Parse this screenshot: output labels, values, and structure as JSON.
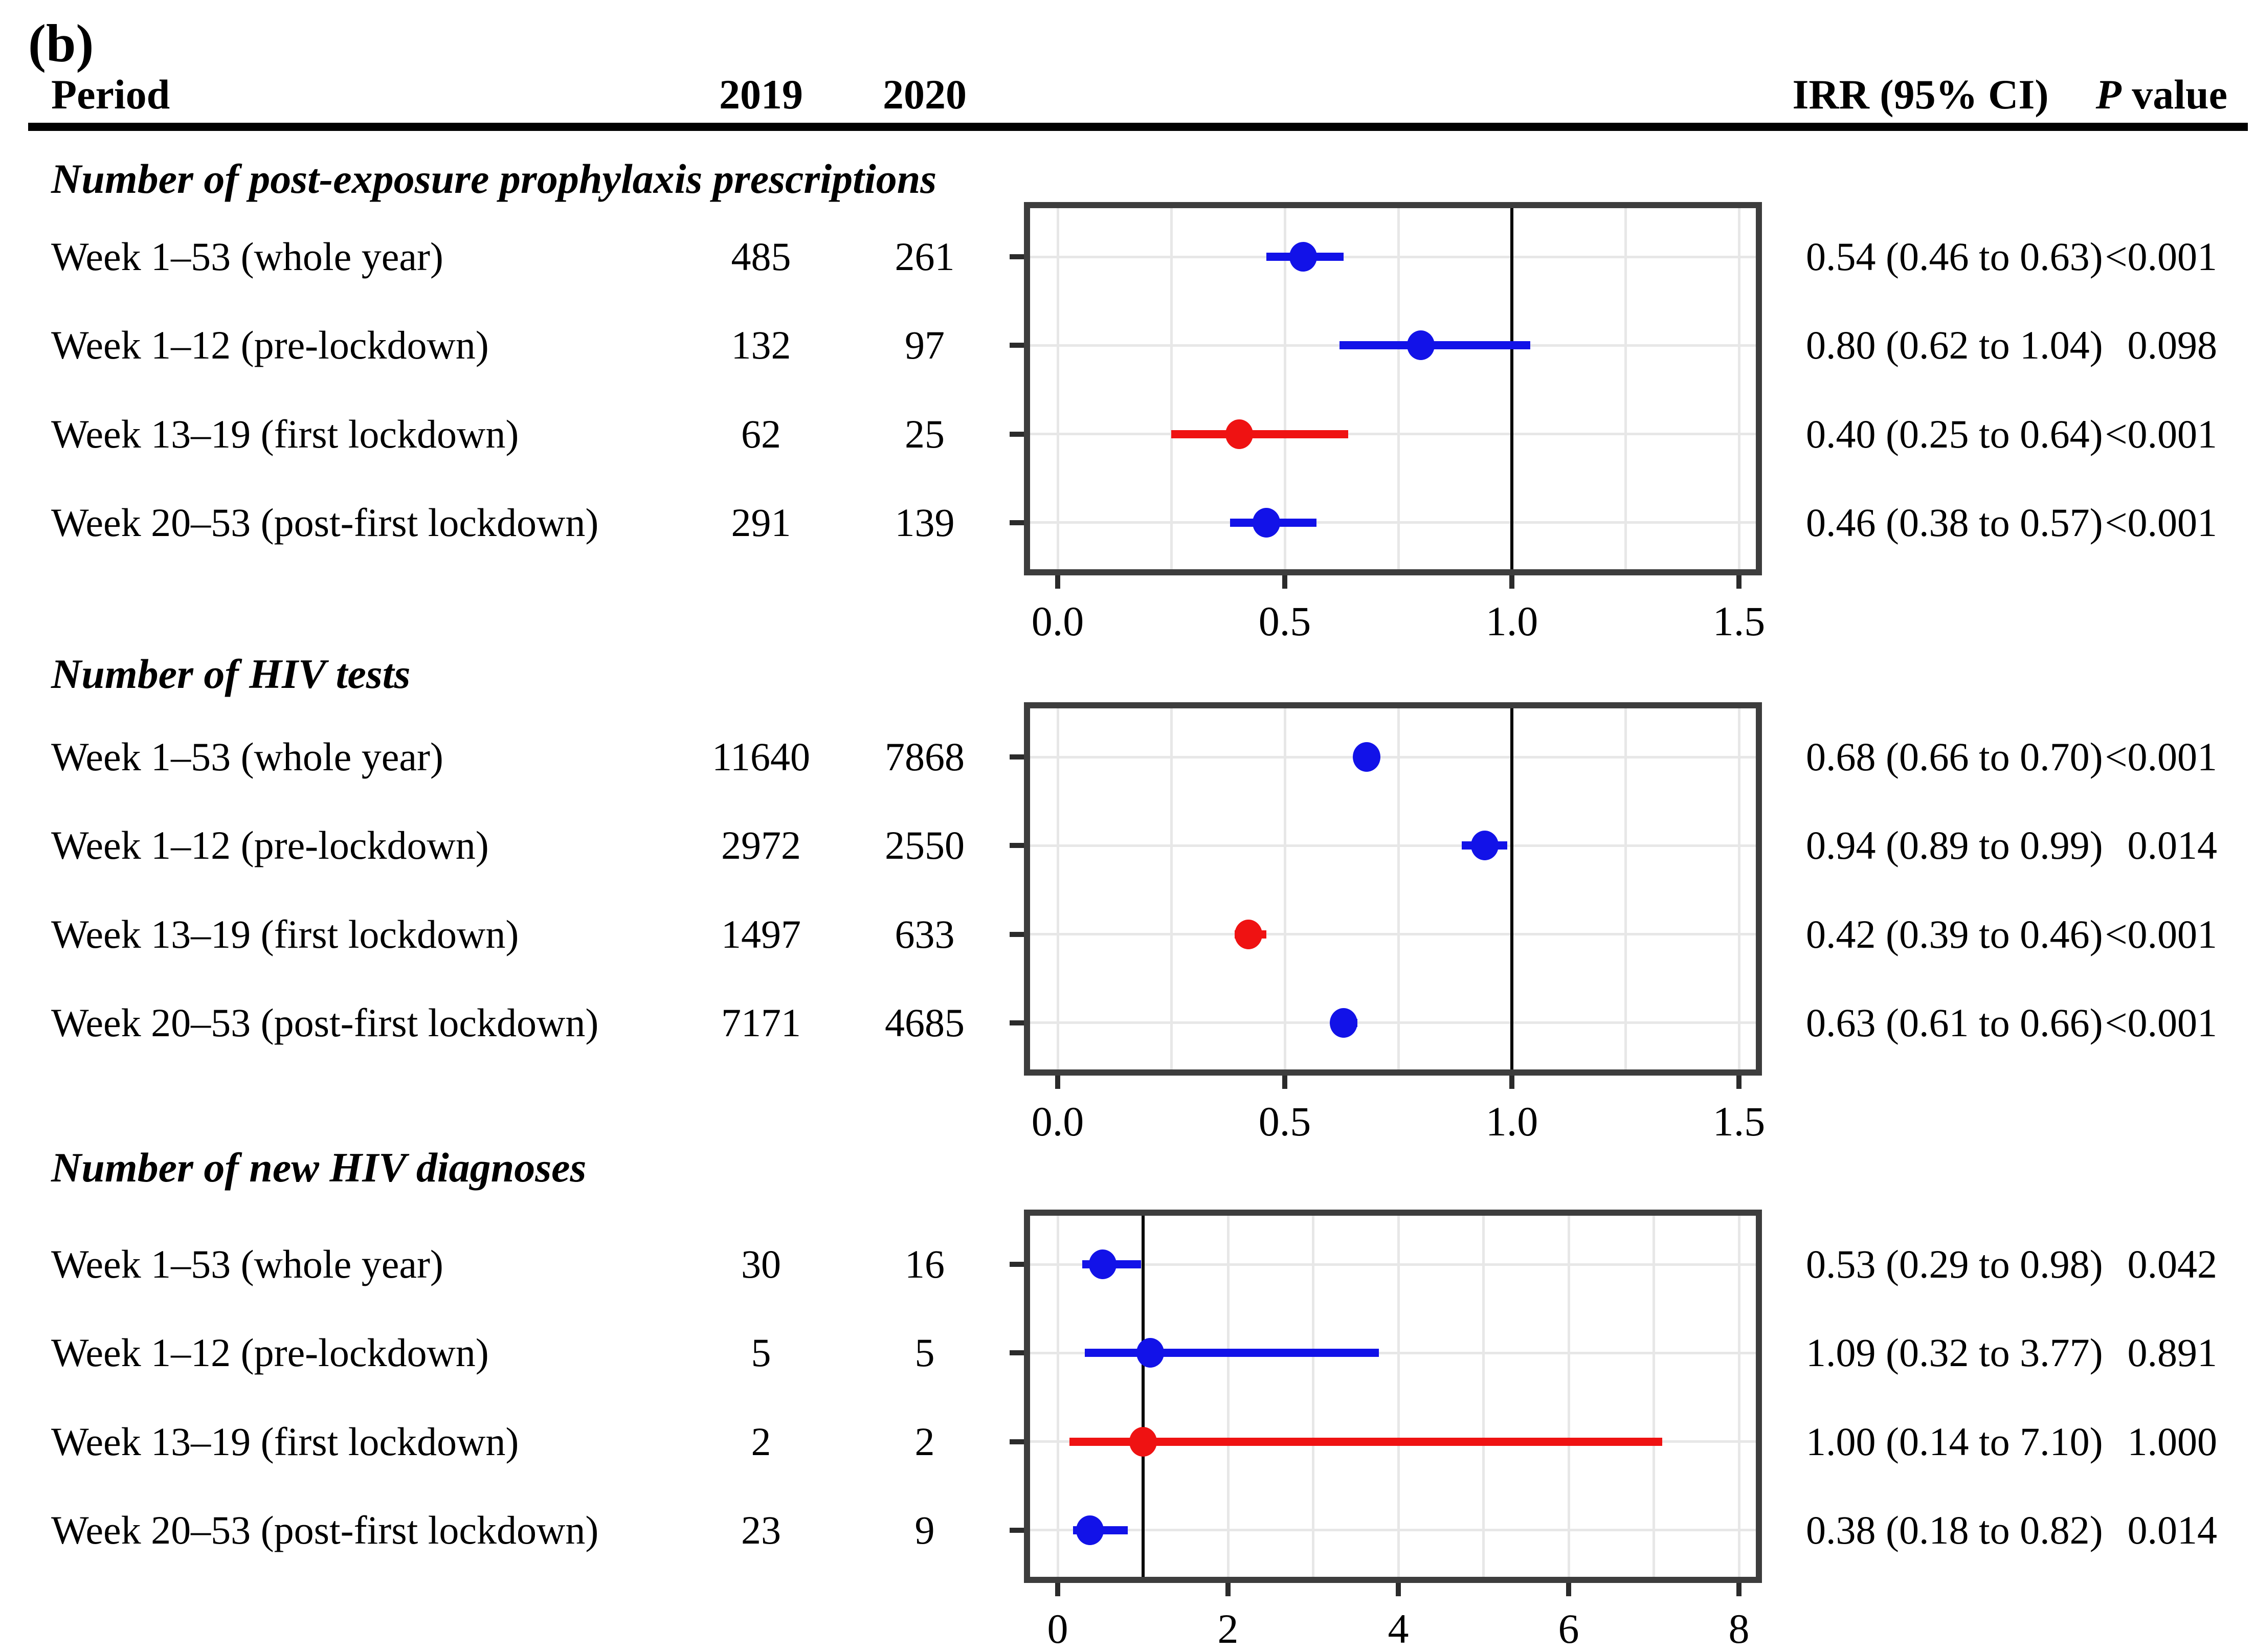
{
  "figure_label": "(b)",
  "columns": {
    "period": "Period",
    "y2019": "2019",
    "y2020": "2020",
    "irr": "IRR (95% CI)",
    "p_italic": "P",
    "p_rest": " value"
  },
  "colors": {
    "blue": "#1212e8",
    "red": "#ef1212",
    "grid": "#e7e7e7",
    "border": "#3d3d3d",
    "reference": "#000000"
  },
  "chart_data": [
    {
      "type": "scatter",
      "subtype": "forest-plot",
      "title": "Number of post-exposure prophylaxis prescriptions",
      "xlim": [
        0,
        1.5
      ],
      "xtick_values": [
        0,
        0.5,
        1,
        1.5
      ],
      "xticks": [
        "0.0",
        "0.5",
        "1.0",
        "1.5"
      ],
      "grid_step": 0.25,
      "reference_line": 1.0,
      "grid": true,
      "rows": [
        {
          "label": "Week 1–53 (whole year)",
          "n2019": "485",
          "n2020": "261",
          "est": 0.54,
          "lo": 0.46,
          "hi": 0.63,
          "color": "blue",
          "irr_text": "0.54 (0.46 to 0.63)",
          "p_text": "<0.001"
        },
        {
          "label": "Week 1–12 (pre-lockdown)",
          "n2019": "132",
          "n2020": "97",
          "est": 0.8,
          "lo": 0.62,
          "hi": 1.04,
          "color": "blue",
          "irr_text": "0.80 (0.62 to 1.04)",
          "p_text": "0.098"
        },
        {
          "label": "Week 13–19 (first lockdown)",
          "n2019": "62",
          "n2020": "25",
          "est": 0.4,
          "lo": 0.25,
          "hi": 0.64,
          "color": "red",
          "irr_text": "0.40 (0.25 to 0.64)",
          "p_text": "<0.001"
        },
        {
          "label": "Week 20–53 (post-first lockdown)",
          "n2019": "291",
          "n2020": "139",
          "est": 0.46,
          "lo": 0.38,
          "hi": 0.57,
          "color": "blue",
          "irr_text": "0.46 (0.38 to 0.57)",
          "p_text": "<0.001"
        }
      ]
    },
    {
      "type": "scatter",
      "subtype": "forest-plot",
      "title": "Number of HIV tests",
      "xlim": [
        0,
        1.5
      ],
      "xtick_values": [
        0,
        0.5,
        1,
        1.5
      ],
      "xticks": [
        "0.0",
        "0.5",
        "1.0",
        "1.5"
      ],
      "grid_step": 0.25,
      "reference_line": 1.0,
      "grid": true,
      "rows": [
        {
          "label": "Week 1–53 (whole year)",
          "n2019": "11640",
          "n2020": "7868",
          "est": 0.68,
          "lo": 0.66,
          "hi": 0.7,
          "color": "blue",
          "irr_text": "0.68 (0.66 to 0.70)",
          "p_text": "<0.001"
        },
        {
          "label": "Week 1–12 (pre-lockdown)",
          "n2019": "2972",
          "n2020": "2550",
          "est": 0.94,
          "lo": 0.89,
          "hi": 0.99,
          "color": "blue",
          "irr_text": "0.94 (0.89 to 0.99)",
          "p_text": "0.014"
        },
        {
          "label": "Week 13–19 (first lockdown)",
          "n2019": "1497",
          "n2020": "633",
          "est": 0.42,
          "lo": 0.39,
          "hi": 0.46,
          "color": "red",
          "irr_text": "0.42 (0.39 to 0.46)",
          "p_text": "<0.001"
        },
        {
          "label": "Week 20–53 (post-first lockdown)",
          "n2019": "7171",
          "n2020": "4685",
          "est": 0.63,
          "lo": 0.61,
          "hi": 0.66,
          "color": "blue",
          "irr_text": "0.63 (0.61 to 0.66)",
          "p_text": "<0.001"
        }
      ]
    },
    {
      "type": "scatter",
      "subtype": "forest-plot",
      "title": "Number of new HIV diagnoses",
      "xlim": [
        0,
        8
      ],
      "xtick_values": [
        0,
        2,
        4,
        6,
        8
      ],
      "xticks": [
        "0",
        "2",
        "4",
        "6",
        "8"
      ],
      "grid_step": 1,
      "reference_line": 1.0,
      "grid": true,
      "rows": [
        {
          "label": "Week 1–53 (whole year)",
          "n2019": "30",
          "n2020": "16",
          "est": 0.53,
          "lo": 0.29,
          "hi": 0.98,
          "color": "blue",
          "irr_text": "0.53 (0.29 to 0.98)",
          "p_text": "0.042"
        },
        {
          "label": "Week 1–12 (pre-lockdown)",
          "n2019": "5",
          "n2020": "5",
          "est": 1.09,
          "lo": 0.32,
          "hi": 3.77,
          "color": "blue",
          "irr_text": "1.09 (0.32 to 3.77)",
          "p_text": "0.891"
        },
        {
          "label": "Week 13–19 (first lockdown)",
          "n2019": "2",
          "n2020": "2",
          "est": 1.0,
          "lo": 0.14,
          "hi": 7.1,
          "color": "red",
          "irr_text": "1.00 (0.14 to 7.10)",
          "p_text": "1.000"
        },
        {
          "label": "Week 20–53 (post-first lockdown)",
          "n2019": "23",
          "n2020": "9",
          "est": 0.38,
          "lo": 0.18,
          "hi": 0.82,
          "color": "blue",
          "irr_text": "0.38 (0.18 to 0.82)",
          "p_text": "0.014"
        }
      ]
    }
  ]
}
